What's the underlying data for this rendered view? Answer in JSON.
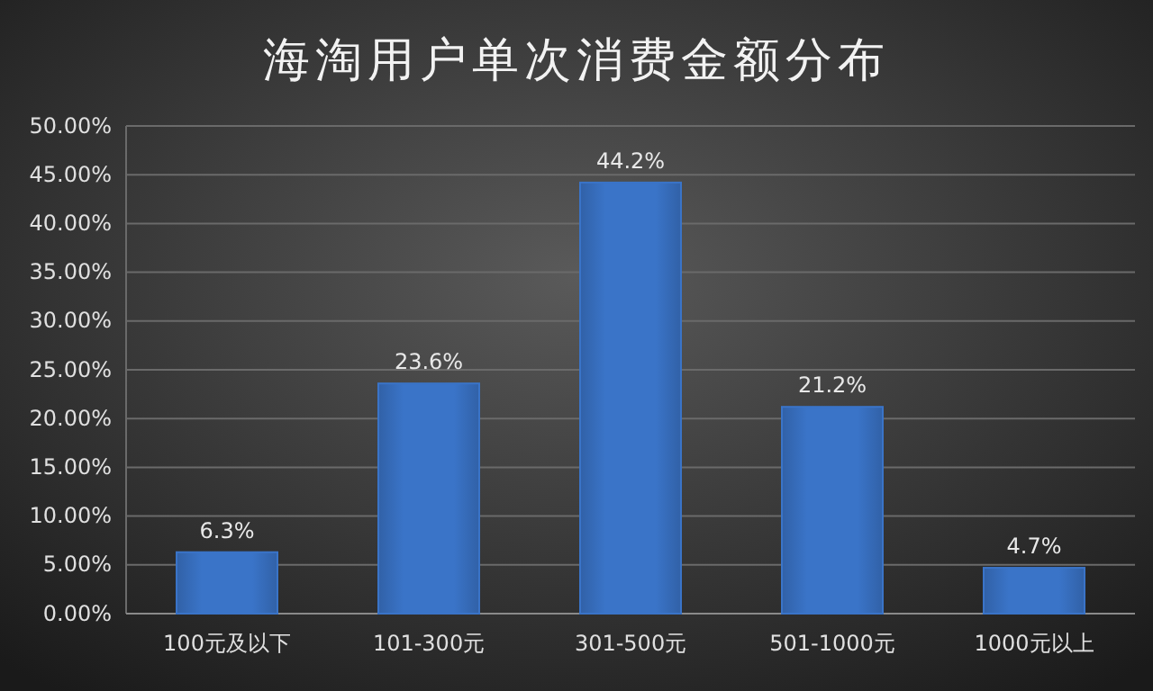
{
  "chart_data": {
    "type": "bar",
    "title": "海淘用户单次消费金额分布",
    "categories": [
      "100元及以下",
      "101-300元",
      "301-500元",
      "501-1000元",
      "1000元以上"
    ],
    "values": [
      6.3,
      23.6,
      44.2,
      21.2,
      4.7
    ],
    "value_labels": [
      "6.3%",
      "23.6%",
      "44.2%",
      "21.2%",
      "4.7%"
    ],
    "color": "#3a74c8",
    "ylim": [
      0,
      50
    ],
    "yticks": [
      {
        "value": 0,
        "label": "0.00%"
      },
      {
        "value": 5,
        "label": "5.00%"
      },
      {
        "value": 10,
        "label": "10.00%"
      },
      {
        "value": 15,
        "label": "15.00%"
      },
      {
        "value": 20,
        "label": "20.00%"
      },
      {
        "value": 25,
        "label": "25.00%"
      },
      {
        "value": 30,
        "label": "30.00%"
      },
      {
        "value": 35,
        "label": "35.00%"
      },
      {
        "value": 40,
        "label": "40.00%"
      },
      {
        "value": 45,
        "label": "45.00%"
      },
      {
        "value": 50,
        "label": "50.00%"
      }
    ],
    "grid": "y"
  }
}
